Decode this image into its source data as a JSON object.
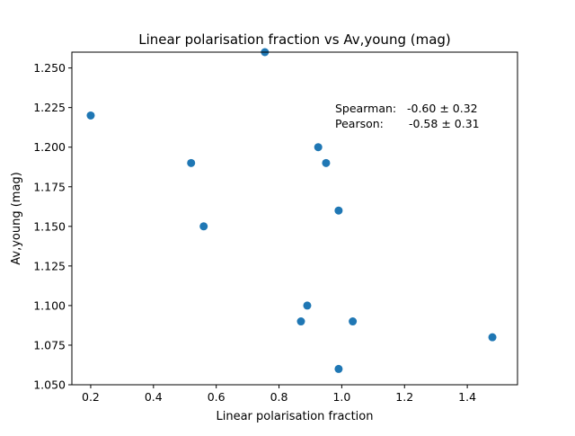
{
  "chart_data": {
    "type": "scatter",
    "title": "Linear polarisation fraction vs Av,young (mag)",
    "xlabel": "Linear polarisation fraction",
    "ylabel": "Av,young (mag)",
    "xlim": [
      0.14,
      1.56
    ],
    "ylim": [
      1.05,
      1.26
    ],
    "xticks": [
      0.2,
      0.4,
      0.6,
      0.8,
      1.0,
      1.2,
      1.4
    ],
    "xtick_labels": [
      "0.2",
      "0.4",
      "0.6",
      "0.8",
      "1.0",
      "1.2",
      "1.4"
    ],
    "yticks": [
      1.05,
      1.075,
      1.1,
      1.125,
      1.15,
      1.175,
      1.2,
      1.225,
      1.25
    ],
    "ytick_labels": [
      "1.050",
      "1.075",
      "1.100",
      "1.125",
      "1.150",
      "1.175",
      "1.200",
      "1.225",
      "1.250"
    ],
    "grid": false,
    "marker_color": "#1f77b4",
    "points": [
      {
        "x": 0.2,
        "y": 1.22
      },
      {
        "x": 0.52,
        "y": 1.19
      },
      {
        "x": 0.56,
        "y": 1.15
      },
      {
        "x": 0.755,
        "y": 1.26
      },
      {
        "x": 0.87,
        "y": 1.09
      },
      {
        "x": 0.89,
        "y": 1.1
      },
      {
        "x": 0.925,
        "y": 1.2
      },
      {
        "x": 0.95,
        "y": 1.19
      },
      {
        "x": 0.99,
        "y": 1.16
      },
      {
        "x": 0.99,
        "y": 1.06
      },
      {
        "x": 1.035,
        "y": 1.09
      },
      {
        "x": 1.48,
        "y": 1.08
      }
    ],
    "annotations": [
      {
        "label": "Spearman:",
        "value": "-0.60 ± 0.32"
      },
      {
        "label": "Pearson:",
        "value": "-0.58 ± 0.31"
      }
    ]
  }
}
